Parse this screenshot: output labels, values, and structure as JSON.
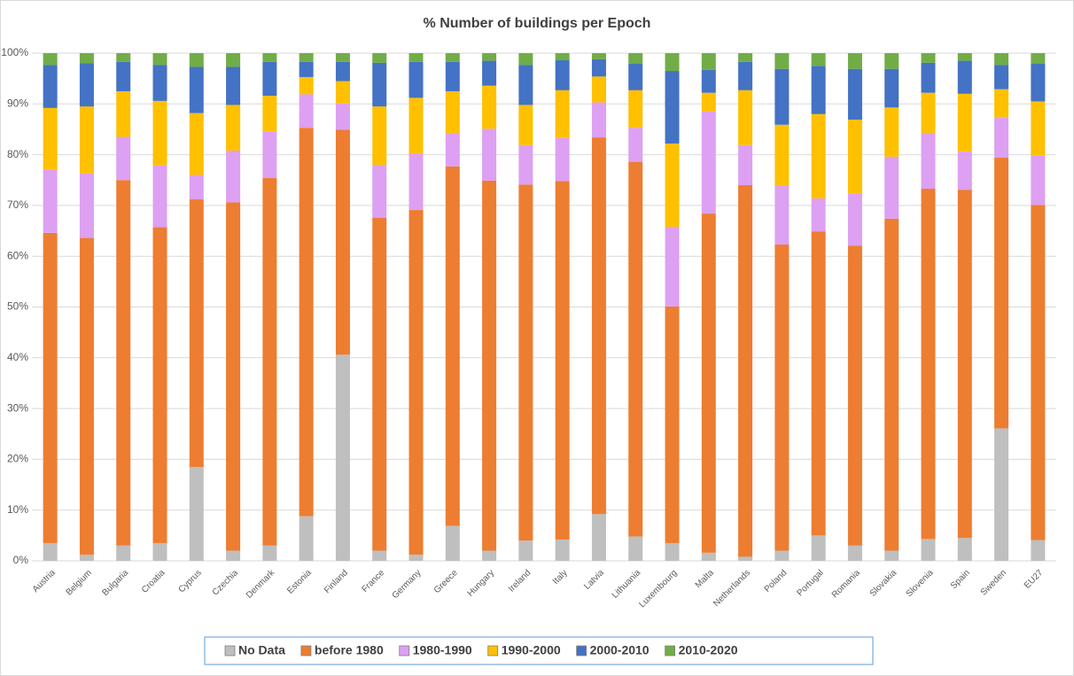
{
  "chart_data": {
    "type": "stacked_bar",
    "title": "% Number of buildings per Epoch",
    "categories": [
      "Austria",
      "Belgium",
      "Bulgaria",
      "Croatia",
      "Cyprus",
      "Czechia",
      "Denmark",
      "Estonia",
      "Finland",
      "France",
      "Germany",
      "Greece",
      "Hungary",
      "Ireland",
      "Italy",
      "Latvia",
      "Lithuania",
      "Luxembourg",
      "Malta",
      "Netherlands",
      "Poland",
      "Portugal",
      "Romania",
      "Slovakia",
      "Slovenia",
      "Spain",
      "Sweden",
      "EU27"
    ],
    "series": [
      {
        "name": "No Data",
        "color": "#bfbfbf",
        "values": [
          3.5,
          1.2,
          3.0,
          3.5,
          18.5,
          2.0,
          3.0,
          8.8,
          40.6,
          2.0,
          1.2,
          6.9,
          2.0,
          4.0,
          4.2,
          9.2,
          4.8,
          3.5,
          1.6,
          0.8,
          2.0,
          5.0,
          3.0,
          2.0,
          4.3,
          4.5,
          26.1,
          4.1
        ]
      },
      {
        "name": "before 1980",
        "color": "#ed7d31",
        "values": [
          61.1,
          62.4,
          72.0,
          62.2,
          52.7,
          68.6,
          72.4,
          76.5,
          44.3,
          65.6,
          67.9,
          70.8,
          72.9,
          70.1,
          70.6,
          74.2,
          73.8,
          46.6,
          66.8,
          73.2,
          60.3,
          59.9,
          59.1,
          65.4,
          69.0,
          68.6,
          53.3,
          66.0
        ]
      },
      {
        "name": "1980-1990",
        "color": "#dda0f2",
        "values": [
          12.4,
          12.7,
          8.5,
          12.2,
          4.8,
          10.2,
          9.2,
          6.6,
          5.2,
          10.4,
          11.1,
          6.5,
          10.2,
          7.8,
          8.5,
          6.9,
          6.7,
          15.7,
          20.1,
          7.9,
          11.6,
          6.5,
          10.3,
          12.2,
          11.0,
          7.5,
          8.0,
          9.7
        ]
      },
      {
        "name": "1990-2000",
        "color": "#ffc000",
        "values": [
          12.2,
          13.2,
          9.0,
          12.7,
          12.2,
          9.0,
          7.0,
          3.4,
          4.4,
          11.5,
          11.0,
          8.3,
          8.5,
          7.9,
          9.4,
          5.1,
          7.4,
          16.4,
          3.7,
          10.8,
          12.0,
          16.6,
          14.5,
          9.7,
          7.9,
          11.4,
          5.5,
          10.7
        ]
      },
      {
        "name": "2000-2010",
        "color": "#4472c4",
        "values": [
          8.5,
          8.5,
          5.8,
          7.1,
          9.1,
          7.5,
          6.7,
          3.0,
          3.8,
          8.6,
          7.1,
          5.8,
          4.9,
          7.9,
          5.9,
          3.4,
          5.2,
          14.3,
          4.5,
          5.6,
          11.0,
          9.5,
          10.0,
          7.6,
          5.9,
          6.5,
          4.8,
          7.4
        ]
      },
      {
        "name": "2010-2020",
        "color": "#70ad47",
        "values": [
          2.3,
          2.0,
          1.7,
          2.3,
          2.7,
          2.7,
          1.7,
          1.7,
          1.7,
          1.9,
          1.7,
          1.7,
          1.5,
          2.3,
          1.4,
          1.2,
          2.1,
          3.5,
          3.3,
          1.7,
          3.1,
          2.5,
          3.1,
          3.1,
          1.9,
          1.5,
          2.3,
          2.1
        ]
      }
    ],
    "ylim": [
      0,
      100
    ],
    "yticks": [
      {
        "value": 0,
        "label": "0%"
      },
      {
        "value": 10,
        "label": "10%"
      },
      {
        "value": 20,
        "label": "20%"
      },
      {
        "value": 30,
        "label": "30%"
      },
      {
        "value": 40,
        "label": "40%"
      },
      {
        "value": 50,
        "label": "50%"
      },
      {
        "value": 60,
        "label": "60%"
      },
      {
        "value": 70,
        "label": "70%"
      },
      {
        "value": 80,
        "label": "80%"
      },
      {
        "value": 90,
        "label": "90%"
      },
      {
        "value": 100,
        "label": "100%"
      }
    ],
    "grid": true,
    "legend": "bottom"
  }
}
